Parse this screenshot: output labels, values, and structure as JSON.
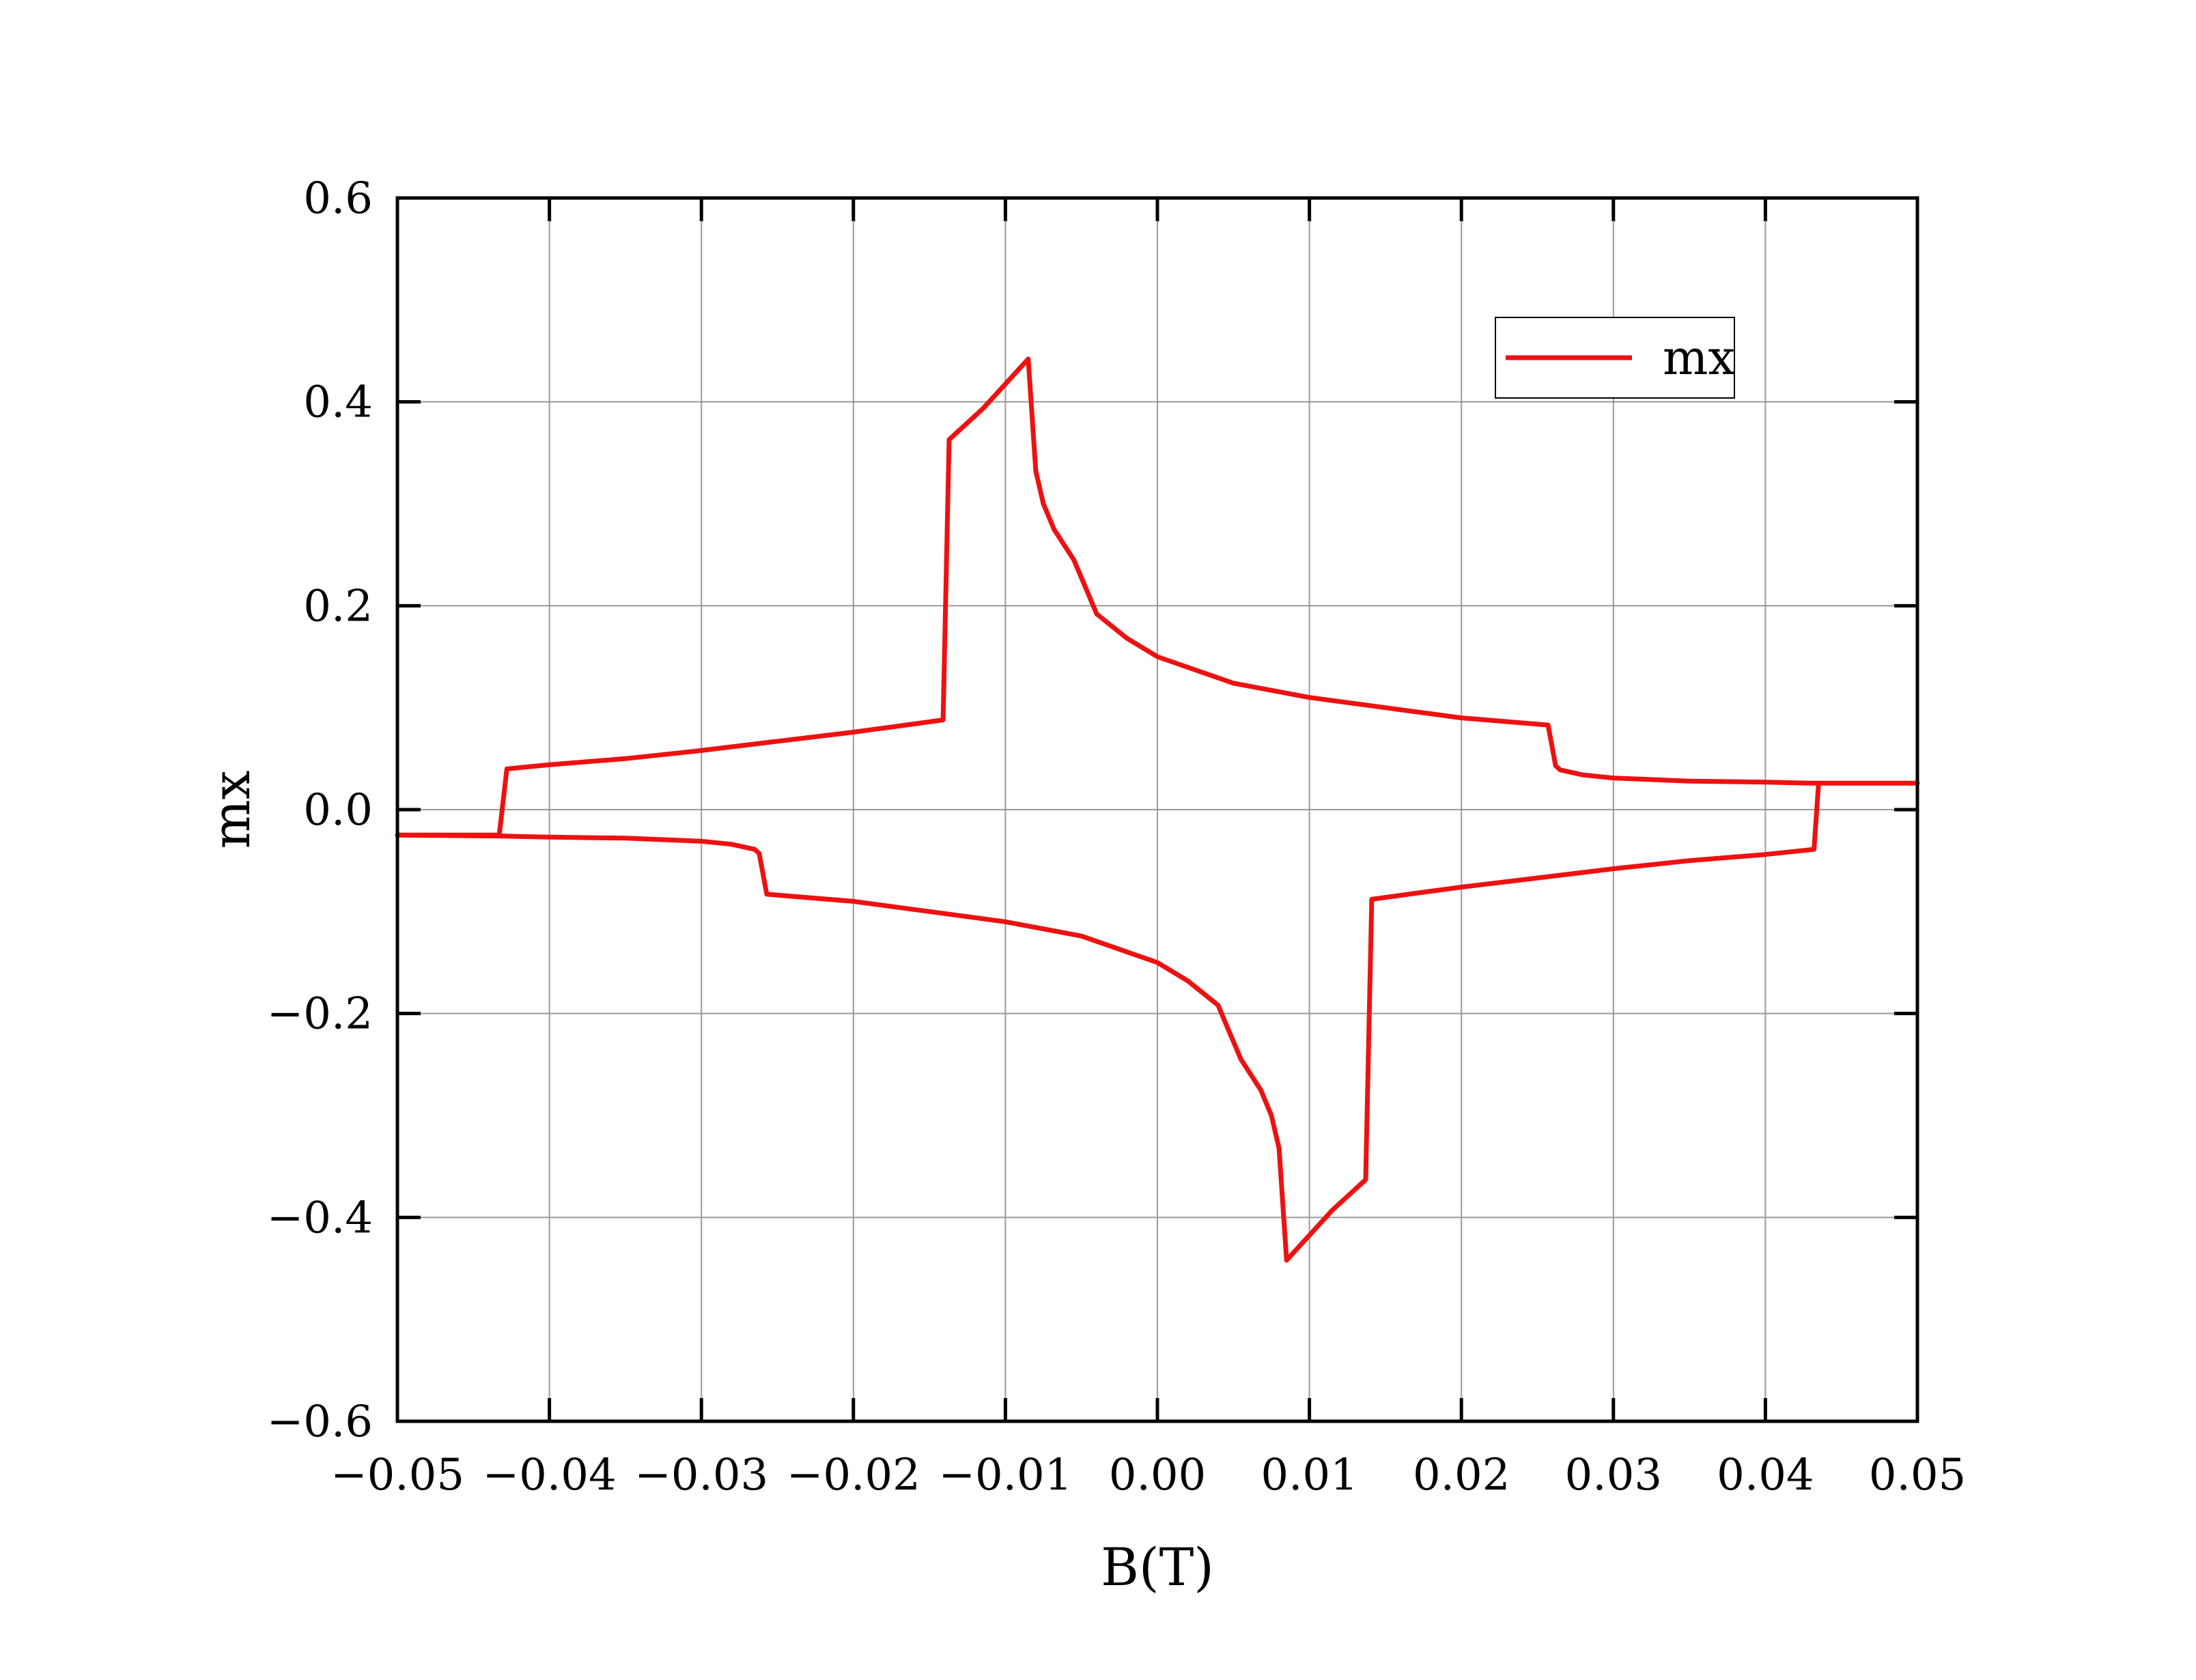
{
  "chart_data": {
    "type": "line",
    "xlabel": "B(T)",
    "ylabel": "mx",
    "xlim": [
      -0.05,
      0.05
    ],
    "ylim": [
      -0.6,
      0.6
    ],
    "x_ticks": [
      -0.05,
      -0.04,
      -0.03,
      -0.02,
      -0.01,
      0.0,
      0.01,
      0.02,
      0.03,
      0.04,
      0.05
    ],
    "x_tick_labels": [
      "−0.05",
      "−0.04",
      "−0.03",
      "−0.02",
      "−0.01",
      "0.00",
      "0.01",
      "0.02",
      "0.03",
      "0.04",
      "0.05"
    ],
    "y_ticks": [
      -0.6,
      -0.4,
      -0.2,
      0.0,
      0.2,
      0.4,
      0.6
    ],
    "y_tick_labels": [
      "−0.6",
      "−0.4",
      "−0.2",
      "0.0",
      "0.2",
      "0.4",
      "0.6"
    ],
    "grid": true,
    "legend_position": "top-right",
    "series": [
      {
        "name": "mx",
        "color": "#ee1111",
        "points": [
          [
            0.05,
            0.026
          ],
          [
            0.043,
            0.026
          ],
          [
            0.04,
            0.027
          ],
          [
            0.035,
            0.028
          ],
          [
            0.03,
            0.031
          ],
          [
            0.028,
            0.034
          ],
          [
            0.0265,
            0.039
          ],
          [
            0.0262,
            0.043
          ],
          [
            0.0257,
            0.083
          ],
          [
            0.02,
            0.09
          ],
          [
            0.015,
            0.1
          ],
          [
            0.01,
            0.11
          ],
          [
            0.005,
            0.124
          ],
          [
            0.0,
            0.15
          ],
          [
            -0.002,
            0.168
          ],
          [
            -0.004,
            0.192
          ],
          [
            -0.0045,
            0.21
          ],
          [
            -0.0055,
            0.245
          ],
          [
            -0.0068,
            0.275
          ],
          [
            -0.0075,
            0.3
          ],
          [
            -0.008,
            0.332
          ],
          [
            -0.0085,
            0.442
          ],
          [
            -0.0115,
            0.393
          ],
          [
            -0.0137,
            0.363
          ],
          [
            -0.0141,
            0.088
          ],
          [
            -0.017,
            0.082
          ],
          [
            -0.02,
            0.076
          ],
          [
            -0.025,
            0.067
          ],
          [
            -0.03,
            0.058
          ],
          [
            -0.035,
            0.05
          ],
          [
            -0.04,
            0.044
          ],
          [
            -0.0428,
            0.04
          ],
          [
            -0.0433,
            -0.025
          ],
          [
            -0.05,
            -0.025
          ]
        ]
      },
      {
        "name": "mx",
        "color": "#ee1111",
        "points": [
          [
            -0.05,
            -0.025
          ],
          [
            -0.043,
            -0.026
          ],
          [
            -0.04,
            -0.027
          ],
          [
            -0.035,
            -0.028
          ],
          [
            -0.03,
            -0.031
          ],
          [
            -0.028,
            -0.034
          ],
          [
            -0.0265,
            -0.039
          ],
          [
            -0.0262,
            -0.043
          ],
          [
            -0.0257,
            -0.083
          ],
          [
            -0.02,
            -0.09
          ],
          [
            -0.015,
            -0.1
          ],
          [
            -0.01,
            -0.11
          ],
          [
            -0.005,
            -0.124
          ],
          [
            0.0,
            -0.15
          ],
          [
            0.002,
            -0.168
          ],
          [
            0.004,
            -0.192
          ],
          [
            0.0045,
            -0.21
          ],
          [
            0.0055,
            -0.245
          ],
          [
            0.0068,
            -0.275
          ],
          [
            0.0075,
            -0.3
          ],
          [
            0.008,
            -0.332
          ],
          [
            0.0085,
            -0.442
          ],
          [
            0.0115,
            -0.393
          ],
          [
            0.0137,
            -0.363
          ],
          [
            0.0141,
            -0.088
          ],
          [
            0.017,
            -0.082
          ],
          [
            0.02,
            -0.076
          ],
          [
            0.025,
            -0.067
          ],
          [
            0.03,
            -0.058
          ],
          [
            0.035,
            -0.05
          ],
          [
            0.04,
            -0.044
          ],
          [
            0.0432,
            -0.039
          ],
          [
            0.0435,
            0.026
          ]
        ]
      }
    ]
  }
}
